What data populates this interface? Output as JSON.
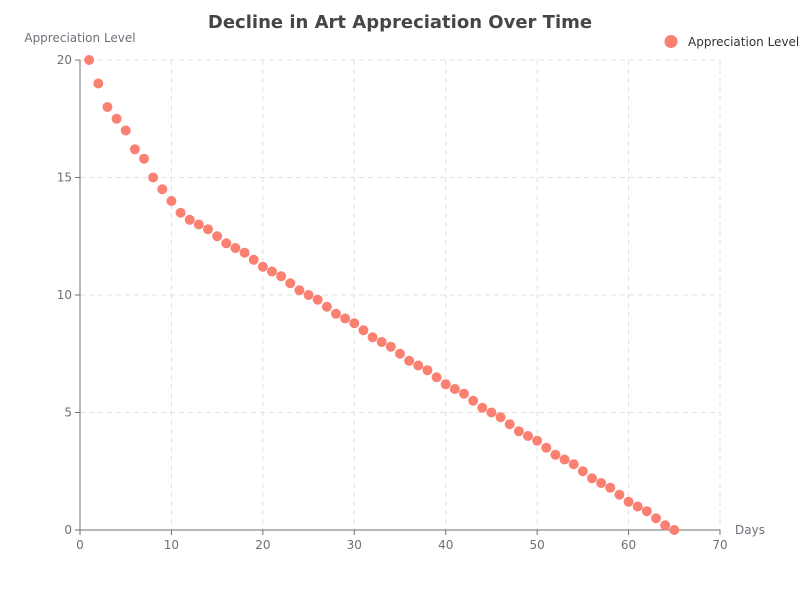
{
  "chart_data": {
    "type": "scatter",
    "title": "Decline in Art Appreciation Over Time",
    "xlabel": "Days",
    "ylabel": "Appreciation Level",
    "xlim": [
      0,
      70
    ],
    "ylim": [
      0,
      20
    ],
    "x_ticks": [
      0,
      10,
      20,
      30,
      40,
      50,
      60,
      70
    ],
    "y_ticks": [
      0,
      5,
      10,
      15,
      20
    ],
    "grid": true,
    "legend_position": "top-right",
    "color": "#fa8072",
    "series": [
      {
        "name": "Appreciation Level",
        "x": [
          1,
          2,
          3,
          4,
          5,
          6,
          7,
          8,
          9,
          10,
          11,
          12,
          13,
          14,
          15,
          16,
          17,
          18,
          19,
          20,
          21,
          22,
          23,
          24,
          25,
          26,
          27,
          28,
          29,
          30,
          31,
          32,
          33,
          34,
          35,
          36,
          37,
          38,
          39,
          40,
          41,
          42,
          43,
          44,
          45,
          46,
          47,
          48,
          49,
          50,
          51,
          52,
          53,
          54,
          55,
          56,
          57,
          58,
          59,
          60,
          61,
          62,
          63,
          64,
          65
        ],
        "y": [
          20,
          19,
          18,
          17.5,
          17,
          16.2,
          15.8,
          15,
          14.5,
          14,
          13.5,
          13.2,
          13,
          12.8,
          12.5,
          12.2,
          12,
          11.8,
          11.5,
          11.2,
          11,
          10.8,
          10.5,
          10.2,
          10,
          9.8,
          9.5,
          9.2,
          9,
          8.8,
          8.5,
          8.2,
          8,
          7.8,
          7.5,
          7.2,
          7,
          6.8,
          6.5,
          6.2,
          6,
          5.8,
          5.5,
          5.2,
          5,
          4.8,
          4.5,
          4.2,
          4,
          3.8,
          3.5,
          3.2,
          3,
          2.8,
          2.5,
          2.2,
          2,
          1.8,
          1.5,
          1.2,
          1,
          0.8,
          0.5,
          0.2,
          0
        ]
      }
    ]
  }
}
